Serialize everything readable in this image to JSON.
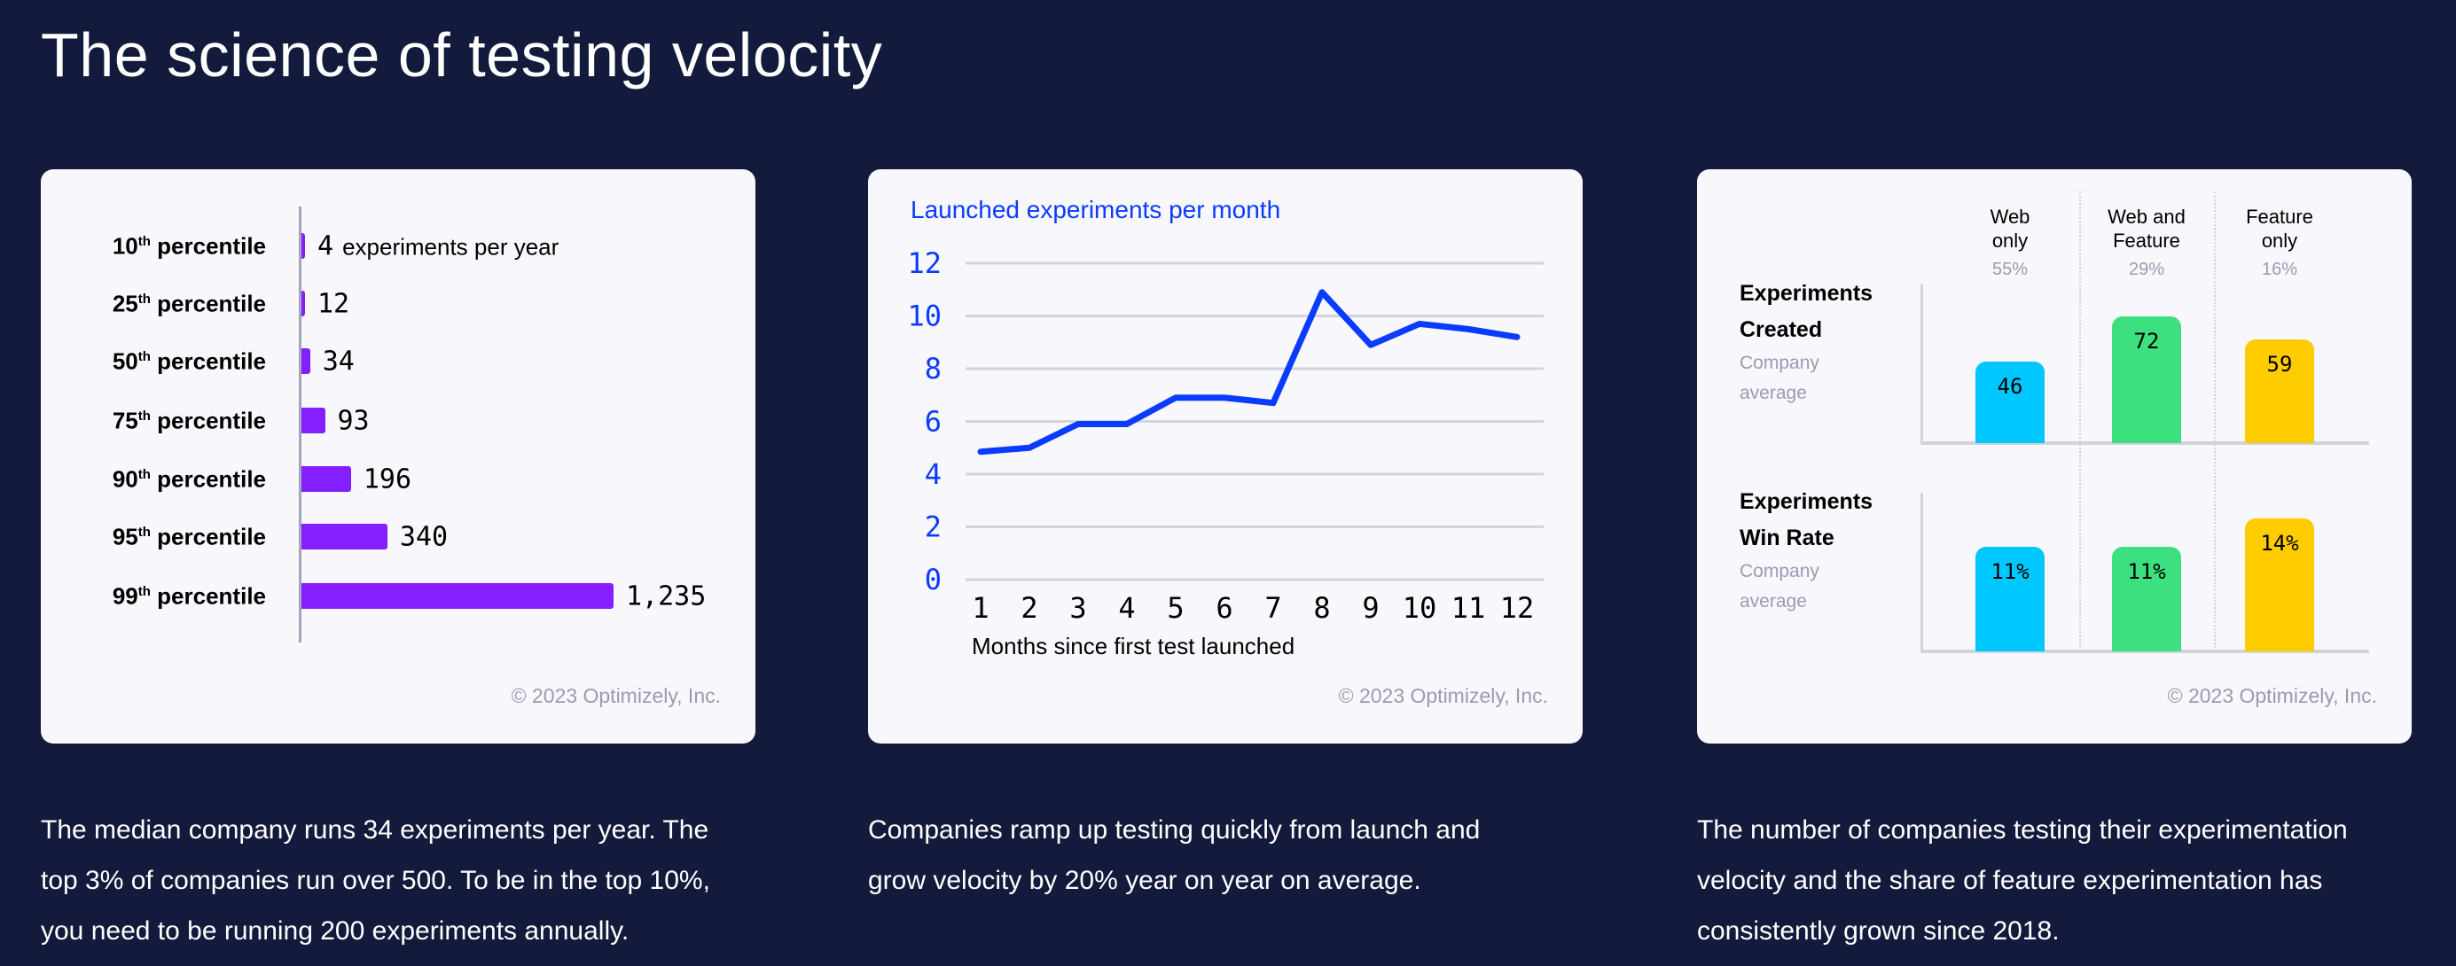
{
  "page_title": "The science of testing velocity",
  "copyright": "© 2023 Optimizely, Inc.",
  "colors": {
    "background": "#131a3b",
    "card": "#f7f7fc",
    "purple": "#8420ff",
    "blue": "#0a3cff",
    "cyan": "#00c8ff",
    "green": "#3ce07f",
    "yellow": "#ffcc00"
  },
  "captions": [
    [
      "The median company runs 34 experiments per year. The",
      "top 3% of companies run over 500. To be in the top 10%,",
      "you need to be running 200 experiments annually."
    ],
    [
      "Companies ramp up testing quickly from launch and",
      "grow velocity by 20% year on year on average."
    ],
    [
      "The number of companies testing their experimentation",
      "velocity and the share of feature experimentation has",
      "consistently grown since 2018."
    ]
  ],
  "chart_data": [
    {
      "type": "bar",
      "orientation": "horizontal",
      "categories": [
        "10",
        "25",
        "50",
        "75",
        "90",
        "95",
        "99"
      ],
      "category_suffix": "th",
      "category_word": "percentile",
      "values": [
        4,
        12,
        34,
        93,
        196,
        340,
        1235
      ],
      "value_labels": [
        "4",
        "12",
        "34",
        "93",
        "196",
        "340",
        "1,235"
      ],
      "unit_label": "experiments per year",
      "xlim": [
        0,
        1235
      ]
    },
    {
      "type": "line",
      "title": "Launched experiments per month",
      "xlabel": "Months since first test launched",
      "x": [
        1,
        2,
        3,
        4,
        5,
        6,
        7,
        8,
        9,
        10,
        11,
        12
      ],
      "y": [
        4.85,
        5.0,
        5.9,
        5.9,
        6.9,
        6.9,
        6.7,
        10.9,
        8.9,
        9.7,
        9.5,
        9.2
      ],
      "yticks": [
        0,
        2,
        4,
        6,
        8,
        10,
        12
      ],
      "ylim": [
        0,
        12
      ],
      "grid": true
    },
    {
      "type": "bar",
      "columns": [
        {
          "name_lines": [
            "Web",
            "only"
          ],
          "share": "55%"
        },
        {
          "name_lines": [
            "Web and",
            "Feature"
          ],
          "share": "29%"
        },
        {
          "name_lines": [
            "Feature",
            "only"
          ],
          "share": "16%"
        }
      ],
      "panels": [
        {
          "title_lines": [
            "Experiments",
            "Created"
          ],
          "subtitle_lines": [
            "Company",
            "average"
          ],
          "values": [
            46,
            72,
            59
          ],
          "labels": [
            "46",
            "72",
            "59"
          ]
        },
        {
          "title_lines": [
            "Experiments",
            "Win Rate"
          ],
          "subtitle_lines": [
            "Company",
            "average"
          ],
          "values": [
            11,
            11,
            14
          ],
          "labels": [
            "11%",
            "11%",
            "14%"
          ]
        }
      ]
    }
  ]
}
